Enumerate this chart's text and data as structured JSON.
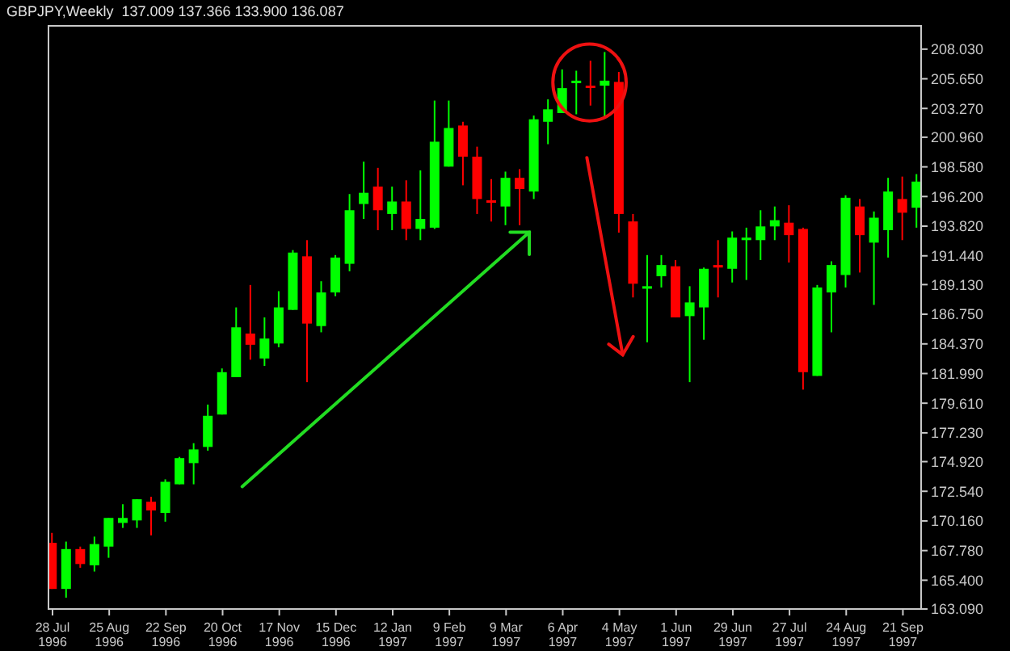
{
  "chart_data": {
    "type": "candlestick",
    "title": "GBPJPY,Weekly  137.009 137.366 133.900 136.087",
    "x": [
      "1996-07-28",
      "1996-08-04",
      "1996-08-11",
      "1996-08-18",
      "1996-08-25",
      "1996-09-01",
      "1996-09-08",
      "1996-09-15",
      "1996-09-22",
      "1996-09-29",
      "1996-10-06",
      "1996-10-13",
      "1996-10-20",
      "1996-10-27",
      "1996-11-03",
      "1996-11-10",
      "1996-11-17",
      "1996-11-24",
      "1996-12-01",
      "1996-12-08",
      "1996-12-15",
      "1996-12-22",
      "1996-12-29",
      "1997-01-05",
      "1997-01-12",
      "1997-01-19",
      "1997-01-26",
      "1997-02-02",
      "1997-02-09",
      "1997-02-16",
      "1997-02-23",
      "1997-03-02",
      "1997-03-09",
      "1997-03-16",
      "1997-03-23",
      "1997-03-30",
      "1997-04-06",
      "1997-04-13",
      "1997-04-20",
      "1997-04-27",
      "1997-05-04",
      "1997-05-11",
      "1997-05-18",
      "1997-05-25",
      "1997-06-01",
      "1997-06-08",
      "1997-06-15",
      "1997-06-22",
      "1997-06-29",
      "1997-07-06",
      "1997-07-13",
      "1997-07-20",
      "1997-07-27",
      "1997-08-03",
      "1997-08-10",
      "1997-08-17",
      "1997-08-24",
      "1997-08-31",
      "1997-09-07",
      "1997-09-14",
      "1997-09-21",
      "1997-09-28"
    ],
    "ohlc": [
      [
        168.4,
        169.2,
        164.7,
        164.7
      ],
      [
        164.7,
        168.5,
        164.0,
        167.9
      ],
      [
        167.9,
        168.1,
        166.4,
        166.7
      ],
      [
        166.6,
        168.9,
        166.1,
        168.3
      ],
      [
        168.1,
        170.4,
        167.2,
        170.4
      ],
      [
        170.0,
        171.5,
        169.6,
        170.4
      ],
      [
        170.2,
        171.9,
        169.6,
        171.9
      ],
      [
        171.7,
        172.1,
        169.0,
        171.0
      ],
      [
        170.8,
        173.5,
        170.1,
        173.3
      ],
      [
        173.1,
        175.3,
        173.1,
        175.2
      ],
      [
        174.8,
        176.4,
        173.1,
        175.9
      ],
      [
        176.1,
        179.5,
        175.8,
        178.6
      ],
      [
        178.7,
        182.4,
        178.7,
        182.1
      ],
      [
        181.7,
        187.3,
        181.7,
        185.7
      ],
      [
        185.2,
        189.1,
        183.1,
        184.3
      ],
      [
        183.2,
        186.5,
        182.6,
        184.8
      ],
      [
        184.4,
        188.6,
        184.1,
        187.3
      ],
      [
        187.1,
        191.9,
        187.1,
        191.7
      ],
      [
        191.4,
        192.7,
        181.3,
        186.0
      ],
      [
        185.8,
        189.4,
        185.3,
        188.5
      ],
      [
        188.5,
        191.5,
        188.2,
        191.3
      ],
      [
        190.8,
        196.4,
        190.2,
        195.1
      ],
      [
        195.6,
        199.0,
        194.4,
        196.5
      ],
      [
        197.0,
        198.5,
        193.5,
        195.1
      ],
      [
        194.8,
        197.0,
        193.5,
        195.8
      ],
      [
        195.8,
        197.5,
        192.7,
        193.6
      ],
      [
        193.6,
        198.3,
        192.7,
        194.4
      ],
      [
        193.7,
        203.9,
        193.6,
        200.6
      ],
      [
        198.6,
        203.9,
        198.6,
        201.7
      ],
      [
        201.9,
        202.2,
        197.1,
        199.4
      ],
      [
        199.4,
        200.2,
        194.8,
        196.0
      ],
      [
        195.9,
        197.6,
        194.2,
        195.7
      ],
      [
        195.4,
        198.2,
        193.9,
        197.7
      ],
      [
        197.7,
        198.4,
        193.9,
        196.8
      ],
      [
        196.6,
        202.7,
        196.0,
        202.4
      ],
      [
        202.2,
        204.0,
        200.4,
        203.2
      ],
      [
        202.9,
        206.4,
        202.9,
        204.9
      ],
      [
        205.3,
        206.3,
        202.8,
        205.5
      ],
      [
        205.1,
        207.1,
        203.5,
        205.0
      ],
      [
        205.1,
        207.8,
        202.5,
        205.5
      ],
      [
        205.4,
        206.2,
        193.3,
        194.8
      ],
      [
        194.2,
        194.8,
        188.1,
        189.2
      ],
      [
        188.8,
        191.5,
        184.5,
        189.0
      ],
      [
        189.8,
        191.5,
        188.9,
        190.7
      ],
      [
        190.6,
        191.1,
        186.5,
        186.5
      ],
      [
        186.6,
        189.0,
        181.3,
        187.7
      ],
      [
        187.3,
        190.5,
        184.7,
        190.4
      ],
      [
        190.7,
        192.7,
        188.1,
        190.5
      ],
      [
        190.4,
        193.4,
        189.3,
        192.9
      ],
      [
        192.7,
        193.7,
        189.5,
        192.9
      ],
      [
        192.7,
        195.1,
        191.1,
        193.8
      ],
      [
        193.8,
        195.4,
        192.7,
        194.3
      ],
      [
        194.1,
        195.5,
        190.9,
        193.1
      ],
      [
        193.6,
        193.7,
        180.7,
        182.1
      ],
      [
        181.8,
        189.1,
        181.8,
        188.9
      ],
      [
        188.5,
        191.0,
        185.3,
        190.7
      ],
      [
        189.9,
        196.3,
        188.9,
        196.1
      ],
      [
        195.4,
        196.0,
        190.1,
        193.1
      ],
      [
        192.5,
        195.0,
        187.5,
        194.5
      ],
      [
        193.5,
        197.7,
        191.3,
        196.6
      ],
      [
        196.0,
        197.8,
        192.7,
        194.9
      ],
      [
        195.3,
        198.0,
        193.7,
        197.4
      ]
    ],
    "colors": [
      "#ff0000",
      "#00ff00",
      "#ff0000",
      "#00ff00",
      "#00ff00",
      "#00ff00",
      "#00ff00",
      "#ff0000",
      "#00ff00",
      "#00ff00",
      "#00ff00",
      "#00ff00",
      "#00ff00",
      "#00ff00",
      "#ff0000",
      "#00ff00",
      "#00ff00",
      "#00ff00",
      "#ff0000",
      "#00ff00",
      "#00ff00",
      "#00ff00",
      "#00ff00",
      "#ff0000",
      "#00ff00",
      "#ff0000",
      "#00ff00",
      "#00ff00",
      "#00ff00",
      "#ff0000",
      "#ff0000",
      "#ff0000",
      "#00ff00",
      "#ff0000",
      "#00ff00",
      "#00ff00",
      "#00ff00",
      "#00ff00",
      "#ff0000",
      "#00ff00",
      "#ff0000",
      "#ff0000",
      "#00ff00",
      "#00ff00",
      "#ff0000",
      "#00ff00",
      "#00ff00",
      "#ff0000",
      "#00ff00",
      "#00ff00",
      "#00ff00",
      "#00ff00",
      "#ff0000",
      "#ff0000",
      "#00ff00",
      "#00ff00",
      "#00ff00",
      "#ff0000",
      "#00ff00",
      "#00ff00",
      "#ff0000",
      "#00ff00"
    ],
    "xlim": [
      "1996-07-26",
      "1997-09-30"
    ],
    "xticks": [
      {
        "value": "1996-07-28",
        "label": "28 Jul 1996"
      },
      {
        "value": "1996-08-25",
        "label": "25 Aug 1996"
      },
      {
        "value": "1996-09-22",
        "label": "22 Sep 1996"
      },
      {
        "value": "1996-10-20",
        "label": "20 Oct 1996"
      },
      {
        "value": "1996-11-17",
        "label": "17 Nov 1996"
      },
      {
        "value": "1996-12-15",
        "label": "15 Dec 1996"
      },
      {
        "value": "1997-01-12",
        "label": "12 Jan 1997"
      },
      {
        "value": "1997-02-09",
        "label": "9 Feb 1997"
      },
      {
        "value": "1997-03-09",
        "label": "9 Mar 1997"
      },
      {
        "value": "1997-04-06",
        "label": "6 Apr 1997"
      },
      {
        "value": "1997-05-04",
        "label": "4 May 1997"
      },
      {
        "value": "1997-06-01",
        "label": "1 Jun 1997"
      },
      {
        "value": "1997-06-29",
        "label": "29 Jun 1997"
      },
      {
        "value": "1997-07-27",
        "label": "27 Jul 1997"
      },
      {
        "value": "1997-08-24",
        "label": "24 Aug 1997"
      },
      {
        "value": "1997-09-21",
        "label": "21 Sep 1997"
      }
    ],
    "ylim": [
      163.09,
      209.9
    ],
    "yticks": [
      {
        "value": 163.09,
        "label": "163.090"
      },
      {
        "value": 165.4,
        "label": "165.400"
      },
      {
        "value": 167.78,
        "label": "167.780"
      },
      {
        "value": 170.16,
        "label": "170.160"
      },
      {
        "value": 172.54,
        "label": "172.540"
      },
      {
        "value": 174.92,
        "label": "174.920"
      },
      {
        "value": 177.23,
        "label": "177.230"
      },
      {
        "value": 179.61,
        "label": "179.610"
      },
      {
        "value": 181.99,
        "label": "181.990"
      },
      {
        "value": 184.37,
        "label": "184.370"
      },
      {
        "value": 186.75,
        "label": "186.750"
      },
      {
        "value": 189.13,
        "label": "189.130"
      },
      {
        "value": 191.44,
        "label": "191.440"
      },
      {
        "value": 193.82,
        "label": "193.820"
      },
      {
        "value": 196.2,
        "label": "196.200"
      },
      {
        "value": 198.58,
        "label": "198.580"
      },
      {
        "value": 200.96,
        "label": "200.960"
      },
      {
        "value": 203.27,
        "label": "203.270"
      },
      {
        "value": 205.65,
        "label": "205.650"
      },
      {
        "value": 208.03,
        "label": "208.030"
      }
    ]
  }
}
